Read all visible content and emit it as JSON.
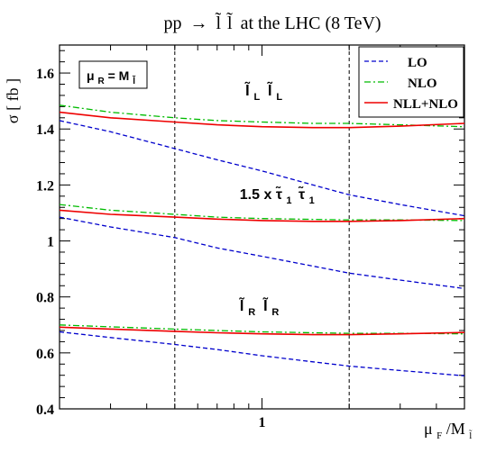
{
  "chart_data": {
    "type": "line",
    "title": "pp → l̃ l̃ at the LHC (8 TeV)",
    "title_prefix": "pp",
    "title_arrow": "→",
    "title_suffix": "at the LHC (8 TeV)",
    "xlabel_base": "μ",
    "xlabel_sub": "F",
    "xlabel_mid": "/M",
    "xlabel_sub2": "l̃",
    "ylabel": "σ [ fb ]",
    "xscale": "log",
    "xlim": [
      0.2,
      5
    ],
    "ylim": [
      0.4,
      1.7
    ],
    "x_ticks": [
      {
        "value": 1,
        "label": "1"
      }
    ],
    "y_ticks": [
      {
        "value": 0.4,
        "label": "0.4"
      },
      {
        "value": 0.6,
        "label": "0.6"
      },
      {
        "value": 0.8,
        "label": "0.8"
      },
      {
        "value": 1.0,
        "label": "1"
      },
      {
        "value": 1.2,
        "label": "1.2"
      },
      {
        "value": 1.4,
        "label": "1.4"
      },
      {
        "value": 1.6,
        "label": "1.6"
      }
    ],
    "vertical_lines": [
      0.5,
      2
    ],
    "scale_box": {
      "base": "μ",
      "sub": "R",
      "mid": " = M",
      "sub2": "l̃"
    },
    "legend": {
      "position": "top-right",
      "entries": [
        {
          "label": "LO",
          "color": "#0000cc",
          "style": "dashed"
        },
        {
          "label": "NLO",
          "color": "#00bb00",
          "style": "dashdot"
        },
        {
          "label": "NLL+NLO",
          "color": "#ee0000",
          "style": "solid"
        }
      ]
    },
    "annotations": [
      {
        "name": "annotation-LL",
        "text": "l̃L l̃L",
        "x": 1.15,
        "y": 1.52
      },
      {
        "name": "annotation-stau",
        "text": "1.5 x τ̃1 τ̃1",
        "x": 1.1,
        "y": 1.15
      },
      {
        "name": "annotation-RR",
        "text": "l̃R l̃R",
        "x": 1.1,
        "y": 0.75
      }
    ],
    "annotation_parts": {
      "LL": {
        "a": "l̃",
        "as": "L",
        "b": "l̃",
        "bs": "L"
      },
      "stau": {
        "pre": "1.5 x ",
        "a": "τ̃",
        "as": "1",
        "b": "τ̃",
        "bs": "1"
      },
      "RR": {
        "a": "l̃",
        "as": "R",
        "b": "l̃",
        "bs": "R"
      }
    },
    "x": [
      0.2,
      0.3,
      0.5,
      0.7,
      1.0,
      1.5,
      2.0,
      3.0,
      5.0
    ],
    "groups": [
      {
        "name": "LL",
        "LO": [
          1.43,
          1.39,
          1.33,
          1.29,
          1.25,
          1.2,
          1.165,
          1.13,
          1.09
        ],
        "NLO": [
          1.485,
          1.46,
          1.44,
          1.43,
          1.425,
          1.42,
          1.42,
          1.415,
          1.408
        ],
        "NLL+NLO": [
          1.46,
          1.44,
          1.425,
          1.415,
          1.408,
          1.405,
          1.405,
          1.41,
          1.42
        ]
      },
      {
        "name": "stau",
        "LO": [
          1.085,
          1.05,
          1.012,
          0.975,
          0.945,
          0.91,
          0.885,
          0.86,
          0.83
        ],
        "NLO": [
          1.13,
          1.11,
          1.095,
          1.085,
          1.08,
          1.077,
          1.075,
          1.075,
          1.073
        ],
        "NLL+NLO": [
          1.11,
          1.095,
          1.085,
          1.078,
          1.073,
          1.07,
          1.07,
          1.073,
          1.08
        ]
      },
      {
        "name": "RR",
        "LO": [
          0.675,
          0.655,
          0.63,
          0.612,
          0.59,
          0.568,
          0.553,
          0.537,
          0.518
        ],
        "NLO": [
          0.7,
          0.693,
          0.685,
          0.68,
          0.675,
          0.672,
          0.67,
          0.67,
          0.668
        ],
        "NLL+NLO": [
          0.692,
          0.685,
          0.677,
          0.672,
          0.668,
          0.665,
          0.665,
          0.668,
          0.673
        ]
      }
    ]
  }
}
